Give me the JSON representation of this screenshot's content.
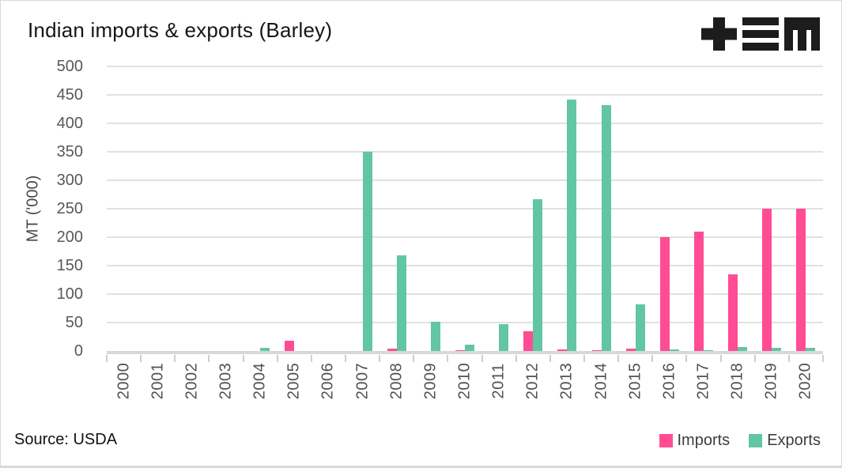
{
  "title": "Indian imports & exports (Barley)",
  "logo": {
    "icons": [
      "plus-icon",
      "triple-bar-icon",
      "block-m-icon"
    ],
    "color": "#1c1c1c"
  },
  "chart_data": {
    "type": "bar",
    "title": "Indian imports & exports (Barley)",
    "xlabel": "",
    "ylabel": "MT ('000)",
    "ylim": [
      0,
      500
    ],
    "ytick_step": 50,
    "grid": true,
    "legend_position": "bottom-right",
    "categories": [
      "2000",
      "2001",
      "2002",
      "2003",
      "2004",
      "2005",
      "2006",
      "2007",
      "2008",
      "2009",
      "2010",
      "2011",
      "2012",
      "2013",
      "2014",
      "2015",
      "2016",
      "2017",
      "2018",
      "2019",
      "2020"
    ],
    "series": [
      {
        "name": "Imports",
        "color": "#ff4c94",
        "values": [
          0,
          0,
          0,
          0,
          0,
          18,
          0,
          0,
          4,
          0,
          2,
          0,
          35,
          3,
          2,
          4,
          200,
          210,
          135,
          250,
          250
        ]
      },
      {
        "name": "Exports",
        "color": "#62c6a2",
        "values": [
          0,
          0,
          0,
          0,
          5,
          0,
          0,
          350,
          168,
          52,
          11,
          47,
          267,
          442,
          432,
          82,
          3,
          2,
          7,
          5,
          5
        ]
      }
    ]
  },
  "footer": {
    "source": "Source: USDA"
  }
}
